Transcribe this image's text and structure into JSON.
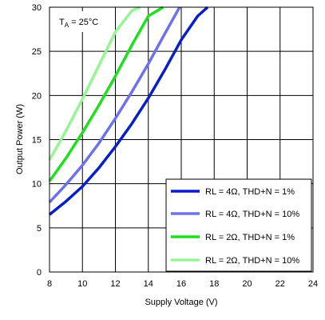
{
  "chart_data": {
    "type": "line",
    "title": "",
    "xlabel": "Supply Voltage (V)",
    "ylabel": "Output Power (W)",
    "xlim": [
      8,
      24
    ],
    "ylim": [
      0,
      30
    ],
    "x_ticks": [
      "8",
      "10",
      "12",
      "14",
      "16",
      "18",
      "20",
      "22",
      "24"
    ],
    "y_ticks": [
      "0",
      "5",
      "10",
      "15",
      "20",
      "25",
      "30"
    ],
    "grid": true,
    "legend_position": "bottom-right",
    "annotation": {
      "prefix": "T",
      "subscript": "A",
      "suffix": " = 25°C"
    },
    "series": [
      {
        "name": "RL = 4Ω, THD+N = 1%",
        "color": "#0a1ec8",
        "x": [
          8,
          9,
          10,
          11,
          12,
          13,
          14,
          15,
          16,
          17,
          17.6
        ],
        "y": [
          6.5,
          8.0,
          9.7,
          11.8,
          14.2,
          16.8,
          19.7,
          22.9,
          26.3,
          29.0,
          30
        ]
      },
      {
        "name": "RL = 4Ω, THD+N = 10%",
        "color": "#6e72ea",
        "x": [
          8,
          9,
          10,
          11,
          12,
          13,
          14,
          15,
          15.9
        ],
        "y": [
          7.9,
          9.9,
          12.1,
          14.6,
          17.4,
          20.4,
          23.6,
          27.0,
          30
        ]
      },
      {
        "name": "RL = 2Ω, THD+N = 1%",
        "color": "#1fe01f",
        "x": [
          8,
          9,
          10,
          11,
          12,
          13,
          14,
          14.9
        ],
        "y": [
          10.3,
          12.9,
          15.8,
          18.9,
          22.2,
          25.7,
          29.0,
          30
        ]
      },
      {
        "name": "RL = 2Ω, THD+N = 10%",
        "color": "#96f596",
        "x": [
          8,
          9,
          10,
          11,
          12,
          13,
          13.5
        ],
        "y": [
          12.7,
          16.0,
          19.6,
          23.4,
          27.2,
          29.6,
          30
        ]
      }
    ]
  }
}
